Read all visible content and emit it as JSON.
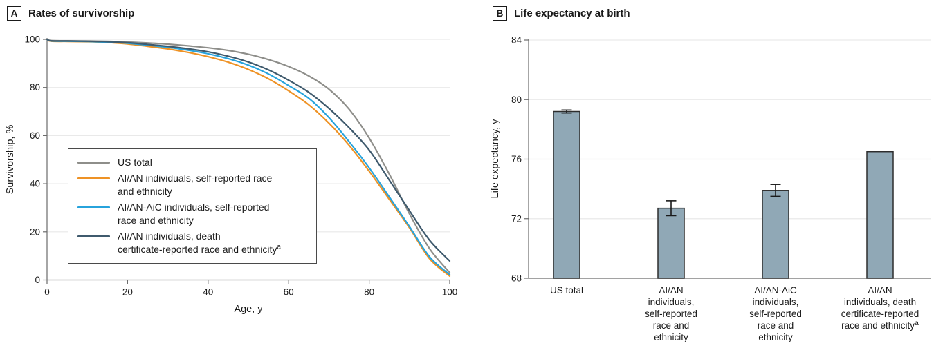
{
  "figure": {
    "panels": [
      {
        "label": "A",
        "title": "Rates of survivorship"
      },
      {
        "label": "B",
        "title": "Life expectancy at birth"
      }
    ]
  },
  "chart_data": [
    {
      "type": "line",
      "panel": "A",
      "title": "Rates of survivorship",
      "xlabel": "Age, y",
      "ylabel": "Survivorship, %",
      "xlim": [
        0,
        100
      ],
      "ylim": [
        0,
        100
      ],
      "xticks": [
        0,
        20,
        40,
        60,
        80,
        100
      ],
      "yticks": [
        0,
        20,
        40,
        60,
        80,
        100
      ],
      "grid": "horizontal",
      "legend_position": "lower-left-box",
      "axis_color": "#6b6b6b",
      "grid_color": "#e9e9e9",
      "x": [
        0,
        1,
        5,
        10,
        15,
        20,
        25,
        30,
        35,
        40,
        45,
        50,
        55,
        60,
        65,
        70,
        75,
        80,
        85,
        90,
        95,
        100
      ],
      "series": [
        {
          "name": "US total",
          "name_lines": [
            "US total"
          ],
          "color": "#8e8e8a",
          "values": [
            100,
            99.5,
            99.4,
            99.3,
            99.2,
            98.9,
            98.5,
            98.0,
            97.3,
            96.5,
            95.4,
            93.8,
            91.6,
            88.7,
            84.8,
            79.3,
            71.0,
            59.0,
            44.0,
            27.5,
            13.0,
            3.0
          ]
        },
        {
          "name": "AI/AN individuals, self-reported race and ethnicity",
          "name_lines": [
            "AI/AN individuals, self-reported race",
            "and ethnicity"
          ],
          "color": "#ee9225",
          "values": [
            100,
            99.2,
            99.1,
            99.0,
            98.7,
            98.1,
            97.1,
            96.0,
            94.6,
            92.8,
            90.5,
            87.5,
            83.6,
            78.6,
            72.8,
            65.2,
            56.0,
            45.2,
            33.5,
            21.7,
            8.8,
            1.6
          ]
        },
        {
          "name": "AI/AN-AiC individuals, self-reported race and ethnicity",
          "name_lines": [
            "AI/AN-AiC individuals, self-reported",
            "race and ethnicity"
          ],
          "color": "#27a3dc",
          "values": [
            100,
            99.3,
            99.2,
            99.1,
            98.8,
            98.4,
            97.6,
            96.7,
            95.5,
            94.0,
            92.0,
            89.3,
            85.6,
            80.8,
            75.5,
            67.5,
            57.5,
            46.6,
            34.5,
            22.2,
            9.6,
            2.2
          ]
        },
        {
          "name": "AI/AN individuals, death certificate-reported race and ethnicity",
          "name_lines": [
            "AI/AN individuals, death",
            "certificate-reported race and ethnicity"
          ],
          "sup": "a",
          "color": "#3f5a6d",
          "values": [
            100,
            99.4,
            99.3,
            99.2,
            99.0,
            98.6,
            97.9,
            97.1,
            96.1,
            94.8,
            93.0,
            90.6,
            87.3,
            83.0,
            78.0,
            71.3,
            63.3,
            54.0,
            41.5,
            28.8,
            16.5,
            7.9
          ]
        }
      ]
    },
    {
      "type": "bar",
      "panel": "B",
      "title": "Life expectancy at birth",
      "xlabel": "",
      "ylabel": "Life expectancy, y",
      "ylim": [
        68,
        84
      ],
      "yticks": [
        68,
        72,
        76,
        80,
        84
      ],
      "grid": "horizontal",
      "bar_color": "#90a8b6",
      "bar_border": "#2d2d2d",
      "error_color": "#1a1a1a",
      "axis_color": "#6b6b6b",
      "grid_color": "#e9e9e9",
      "categories": [
        {
          "label": "US total",
          "lines": [
            "US total"
          ],
          "value": 79.2,
          "ci": [
            79.1,
            79.3
          ]
        },
        {
          "label": "AI/AN individuals, self-reported race and ethnicity",
          "lines": [
            "AI/AN",
            "individuals,",
            "self-reported",
            "race and",
            "ethnicity"
          ],
          "value": 72.7,
          "ci": [
            72.2,
            73.2
          ]
        },
        {
          "label": "AI/AN-AiC individuals, self-reported race and ethnicity",
          "lines": [
            "AI/AN-AiC",
            "individuals,",
            "self-reported",
            "race and",
            "ethnicity"
          ],
          "value": 73.9,
          "ci": [
            73.5,
            74.3
          ]
        },
        {
          "label": "AI/AN individuals, death certificate-reported race and ethnicity",
          "lines": [
            "AI/AN",
            "individuals, death",
            "certificate-reported",
            "race and ethnicity"
          ],
          "sup": "a",
          "value": 76.5,
          "ci": null
        }
      ]
    }
  ]
}
